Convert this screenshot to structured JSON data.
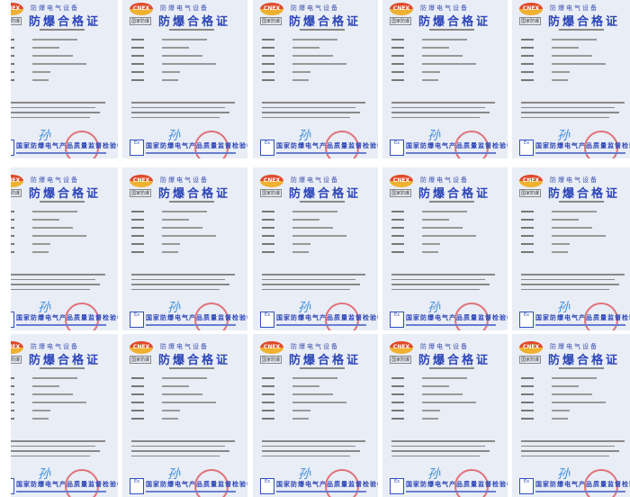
{
  "certificate": {
    "logo_text": "CNEX",
    "logo_subtitle": "国家防爆",
    "header": "防爆电气设备",
    "title": "防爆合格证",
    "signature": "孙",
    "footer": "国家防爆电气产品质量监督检验中心",
    "ex_mark": "Ex"
  },
  "grid": {
    "columns": 5,
    "rows": 3
  },
  "colors": {
    "title": "#2b45b8",
    "stamp": "#dc3c46",
    "paper": "#e9edf5",
    "logo_red": "#e04a2a",
    "logo_yellow": "#f0b030"
  }
}
